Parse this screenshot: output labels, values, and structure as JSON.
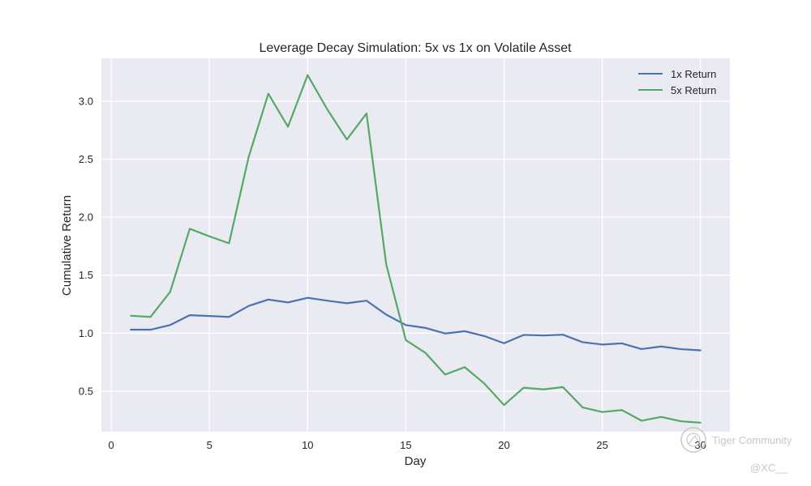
{
  "chart_data": {
    "type": "line",
    "title": "Leverage Decay Simulation: 5x vs 1x on Volatile Asset",
    "xlabel": "Day",
    "ylabel": "Cumulative Return",
    "xlim": [
      -0.5,
      31.5
    ],
    "ylim": [
      0.15,
      3.37
    ],
    "x_ticks": [
      0,
      5,
      10,
      15,
      20,
      25,
      30
    ],
    "y_ticks": [
      0.5,
      1.0,
      1.5,
      2.0,
      2.5,
      3.0
    ],
    "y_tick_labels": [
      "0.5",
      "1.0",
      "1.5",
      "2.0",
      "2.5",
      "3.0"
    ],
    "grid": true,
    "legend_position": "top-right",
    "background_color": "#eaeaf2",
    "grid_color": "#ffffff",
    "x": [
      1,
      2,
      3,
      4,
      5,
      6,
      7,
      8,
      9,
      10,
      11,
      12,
      13,
      14,
      15,
      16,
      17,
      18,
      19,
      20,
      21,
      22,
      23,
      24,
      25,
      26,
      27,
      28,
      29,
      30
    ],
    "series": [
      {
        "name": "1x Return",
        "color": "#4c72b0",
        "values": [
          1.03,
          1.03,
          1.07,
          1.155,
          1.148,
          1.14,
          1.235,
          1.29,
          1.265,
          1.305,
          1.28,
          1.258,
          1.28,
          1.16,
          1.07,
          1.045,
          0.997,
          1.017,
          0.975,
          0.913,
          0.985,
          0.98,
          0.987,
          0.922,
          0.902,
          0.912,
          0.863,
          0.885,
          0.862,
          0.852
        ]
      },
      {
        "name": "5x Return",
        "color": "#55a868",
        "values": [
          1.15,
          1.14,
          1.355,
          1.9,
          1.835,
          1.775,
          2.52,
          3.065,
          2.78,
          3.225,
          2.93,
          2.67,
          2.895,
          1.595,
          0.94,
          0.83,
          0.643,
          0.707,
          0.565,
          0.38,
          0.53,
          0.515,
          0.535,
          0.36,
          0.32,
          0.337,
          0.245,
          0.278,
          0.24,
          0.228
        ]
      }
    ]
  },
  "watermark": {
    "brand": "Tiger Community",
    "handle": "@XC__",
    "icon": "tiger-logo-icon"
  }
}
